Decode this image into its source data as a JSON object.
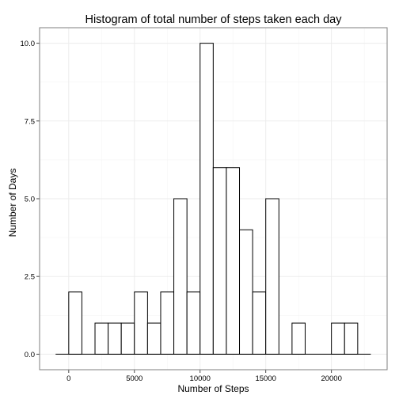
{
  "chart_data": {
    "type": "bar",
    "title": "Histogram of total number of steps taken each day",
    "xlabel": "Number of Steps",
    "ylabel": "Number of Days",
    "xlim": [
      -2220,
      24240
    ],
    "ylim": [
      -0.5,
      10.5
    ],
    "bin_width": 1000,
    "x_ticks": [
      0,
      5000,
      10000,
      15000,
      20000
    ],
    "x_tick_labels": [
      "0",
      "5000",
      "10000",
      "15000",
      "20000"
    ],
    "y_ticks": [
      0,
      2.5,
      5,
      7.5,
      10
    ],
    "y_tick_labels": [
      "0.0",
      "2.5",
      "5.0",
      "7.5",
      "10.0"
    ],
    "baseline_range": [
      -1000,
      23000
    ],
    "bins": [
      {
        "x0": 0,
        "x1": 1000,
        "count": 2
      },
      {
        "x0": 2000,
        "x1": 3000,
        "count": 1
      },
      {
        "x0": 3000,
        "x1": 4000,
        "count": 1
      },
      {
        "x0": 4000,
        "x1": 5000,
        "count": 1
      },
      {
        "x0": 5000,
        "x1": 6000,
        "count": 2
      },
      {
        "x0": 6000,
        "x1": 7000,
        "count": 1
      },
      {
        "x0": 7000,
        "x1": 8000,
        "count": 2
      },
      {
        "x0": 8000,
        "x1": 9000,
        "count": 5
      },
      {
        "x0": 9000,
        "x1": 10000,
        "count": 2
      },
      {
        "x0": 10000,
        "x1": 11000,
        "count": 10
      },
      {
        "x0": 11000,
        "x1": 12000,
        "count": 6
      },
      {
        "x0": 12000,
        "x1": 13000,
        "count": 6
      },
      {
        "x0": 13000,
        "x1": 14000,
        "count": 4
      },
      {
        "x0": 14000,
        "x1": 15000,
        "count": 2
      },
      {
        "x0": 15000,
        "x1": 16000,
        "count": 5
      },
      {
        "x0": 17000,
        "x1": 18000,
        "count": 1
      },
      {
        "x0": 20000,
        "x1": 21000,
        "count": 1
      },
      {
        "x0": 21000,
        "x1": 22000,
        "count": 1
      }
    ],
    "grid": true,
    "colors": {
      "bar_fill": "#ffffff",
      "bar_stroke": "#000000",
      "panel_border": "#7f7f7f",
      "grid": "#ebebeb"
    }
  }
}
